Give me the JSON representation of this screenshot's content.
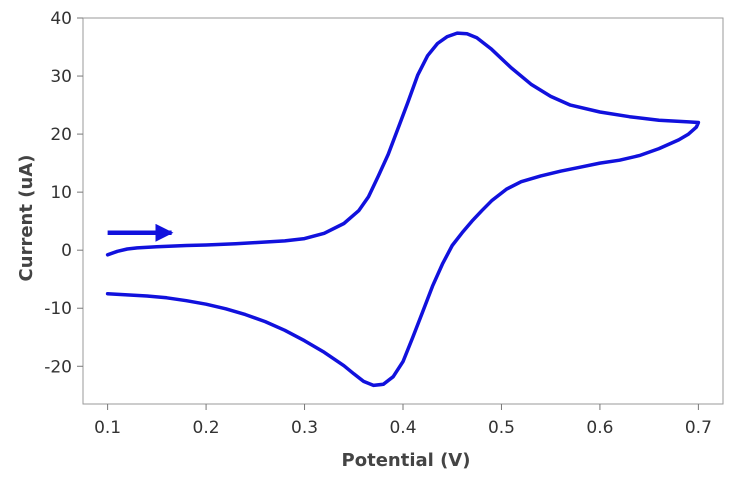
{
  "chart_data": {
    "type": "line",
    "title": "",
    "xlabel": "Potential (V)",
    "ylabel": "Current (uA)",
    "xlim": [
      0.075,
      0.725
    ],
    "ylim": [
      -26.5,
      40
    ],
    "x_ticks": [
      0.1,
      0.2,
      0.3,
      0.4,
      0.5,
      0.6,
      0.7
    ],
    "x_tick_labels": [
      "0.1",
      "0.2",
      "0.3",
      "0.4",
      "0.5",
      "0.6",
      "0.7"
    ],
    "y_ticks": [
      -20,
      -10,
      0,
      10,
      20,
      30,
      40
    ],
    "y_tick_labels": [
      "-20",
      "-10",
      "0",
      "10",
      "20",
      "30",
      "40"
    ],
    "grid": false,
    "legend": "none",
    "line_color": "#1111dd",
    "series": [
      {
        "points": [
          [
            0.1,
            -0.8
          ],
          [
            0.11,
            -0.2
          ],
          [
            0.12,
            0.2
          ],
          [
            0.13,
            0.4
          ],
          [
            0.15,
            0.6
          ],
          [
            0.18,
            0.8
          ],
          [
            0.2,
            0.9
          ],
          [
            0.23,
            1.1
          ],
          [
            0.25,
            1.3
          ],
          [
            0.28,
            1.6
          ],
          [
            0.3,
            2.0
          ],
          [
            0.32,
            2.9
          ],
          [
            0.34,
            4.6
          ],
          [
            0.355,
            6.8
          ],
          [
            0.365,
            9.2
          ],
          [
            0.375,
            12.8
          ],
          [
            0.385,
            16.5
          ],
          [
            0.395,
            21.0
          ],
          [
            0.405,
            25.5
          ],
          [
            0.415,
            30.2
          ],
          [
            0.425,
            33.5
          ],
          [
            0.435,
            35.6
          ],
          [
            0.445,
            36.8
          ],
          [
            0.455,
            37.4
          ],
          [
            0.465,
            37.3
          ],
          [
            0.475,
            36.6
          ],
          [
            0.49,
            34.6
          ],
          [
            0.51,
            31.4
          ],
          [
            0.53,
            28.6
          ],
          [
            0.55,
            26.5
          ],
          [
            0.57,
            25.0
          ],
          [
            0.6,
            23.8
          ],
          [
            0.63,
            23.0
          ],
          [
            0.66,
            22.4
          ],
          [
            0.69,
            22.1
          ],
          [
            0.7,
            22.0
          ],
          [
            0.698,
            21.2
          ],
          [
            0.69,
            20.0
          ],
          [
            0.68,
            19.0
          ],
          [
            0.66,
            17.5
          ],
          [
            0.64,
            16.3
          ],
          [
            0.62,
            15.5
          ],
          [
            0.6,
            15.0
          ],
          [
            0.58,
            14.3
          ],
          [
            0.56,
            13.6
          ],
          [
            0.54,
            12.8
          ],
          [
            0.52,
            11.8
          ],
          [
            0.505,
            10.5
          ],
          [
            0.49,
            8.5
          ],
          [
            0.48,
            6.8
          ],
          [
            0.47,
            5.0
          ],
          [
            0.46,
            3.0
          ],
          [
            0.45,
            0.8
          ],
          [
            0.44,
            -2.4
          ],
          [
            0.43,
            -6.2
          ],
          [
            0.42,
            -10.6
          ],
          [
            0.41,
            -15.0
          ],
          [
            0.4,
            -19.2
          ],
          [
            0.39,
            -21.8
          ],
          [
            0.38,
            -23.1
          ],
          [
            0.37,
            -23.3
          ],
          [
            0.36,
            -22.6
          ],
          [
            0.35,
            -21.3
          ],
          [
            0.34,
            -19.9
          ],
          [
            0.32,
            -17.6
          ],
          [
            0.3,
            -15.6
          ],
          [
            0.28,
            -13.8
          ],
          [
            0.26,
            -12.3
          ],
          [
            0.24,
            -11.1
          ],
          [
            0.22,
            -10.1
          ],
          [
            0.2,
            -9.3
          ],
          [
            0.18,
            -8.7
          ],
          [
            0.16,
            -8.2
          ],
          [
            0.14,
            -7.9
          ],
          [
            0.12,
            -7.7
          ],
          [
            0.1,
            -7.5
          ]
        ]
      }
    ],
    "annotations": [
      {
        "type": "arrow",
        "direction": "right",
        "from": [
          0.1,
          3
        ],
        "to": [
          0.165,
          3
        ]
      }
    ]
  }
}
